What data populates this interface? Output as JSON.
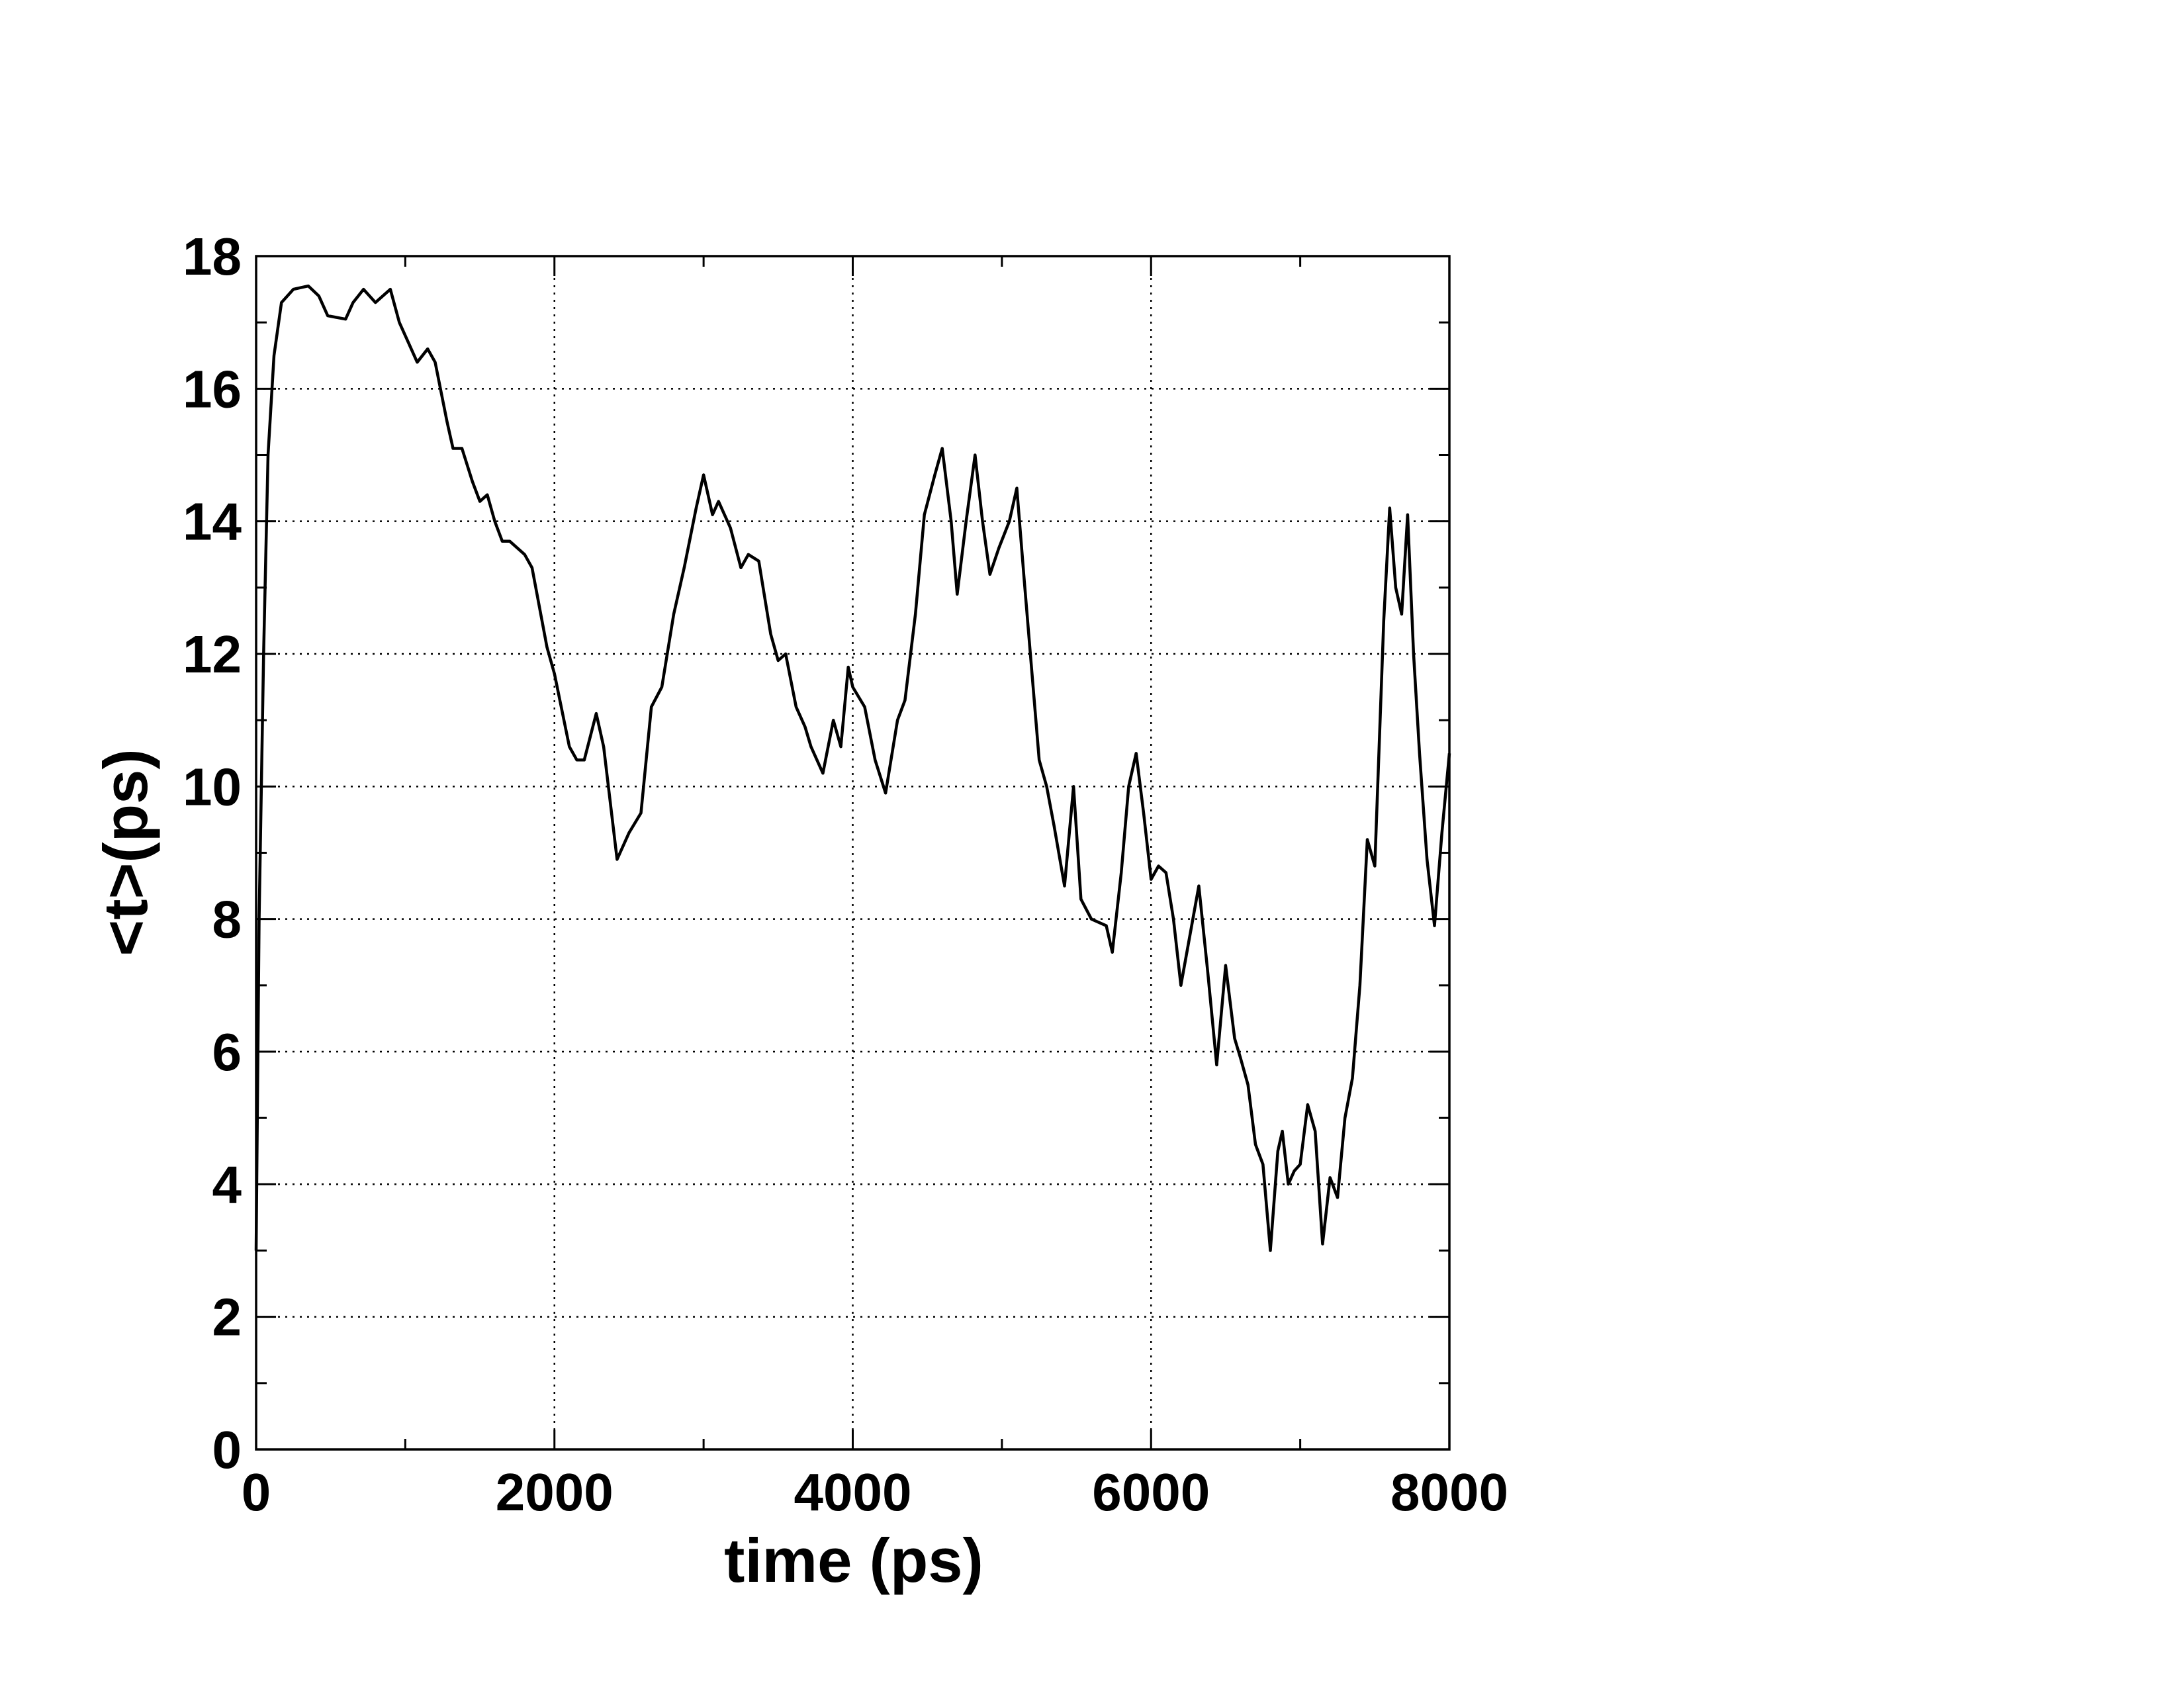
{
  "chart_data": {
    "type": "line",
    "xlabel": "time (ps)",
    "ylabel": "<t>(ps)",
    "x": [
      0,
      20,
      50,
      80,
      120,
      170,
      250,
      350,
      420,
      480,
      600,
      650,
      720,
      800,
      900,
      960,
      1020,
      1080,
      1150,
      1200,
      1280,
      1320,
      1380,
      1450,
      1500,
      1550,
      1600,
      1650,
      1700,
      1800,
      1850,
      1950,
      2000,
      2100,
      2150,
      2200,
      2280,
      2330,
      2420,
      2500,
      2580,
      2650,
      2720,
      2800,
      2870,
      2950,
      3000,
      3060,
      3100,
      3180,
      3250,
      3300,
      3370,
      3450,
      3500,
      3550,
      3620,
      3680,
      3720,
      3800,
      3870,
      3920,
      3970,
      4000,
      4080,
      4150,
      4220,
      4300,
      4350,
      4420,
      4480,
      4550,
      4600,
      4660,
      4700,
      4760,
      4820,
      4870,
      4920,
      4980,
      5050,
      5100,
      5150,
      5250,
      5300,
      5350,
      5420,
      5480,
      5530,
      5600,
      5700,
      5740,
      5800,
      5850,
      5900,
      5950,
      6000,
      6050,
      6100,
      6150,
      6200,
      6280,
      6320,
      6380,
      6440,
      6500,
      6560,
      6600,
      6650,
      6700,
      6750,
      6800,
      6850,
      6880,
      6920,
      6960,
      7000,
      7050,
      7100,
      7150,
      7200,
      7250,
      7300,
      7350,
      7400,
      7450,
      7500,
      7560,
      7600,
      7640,
      7680,
      7720,
      7760,
      7800,
      7850,
      7900,
      7950,
      8000
    ],
    "values": [
      3,
      8,
      12,
      15,
      16.5,
      17.3,
      17.5,
      17.55,
      17.4,
      17.1,
      17.05,
      17.3,
      17.5,
      17.3,
      17.5,
      17.0,
      16.7,
      16.4,
      16.6,
      16.4,
      15.5,
      15.1,
      15.1,
      14.6,
      14.3,
      14.4,
      14.0,
      13.7,
      13.7,
      13.5,
      13.3,
      12.1,
      11.7,
      10.6,
      10.4,
      10.4,
      11.1,
      10.6,
      8.9,
      9.3,
      9.6,
      11.2,
      11.5,
      12.6,
      13.3,
      14.2,
      14.7,
      14.1,
      14.3,
      13.9,
      13.3,
      13.5,
      13.4,
      12.3,
      11.9,
      12.0,
      11.2,
      10.9,
      10.6,
      10.2,
      11.0,
      10.6,
      11.8,
      11.5,
      11.2,
      10.4,
      9.9,
      11.0,
      11.3,
      12.6,
      14.1,
      14.7,
      15.1,
      14.0,
      12.9,
      14.0,
      15.0,
      14.0,
      13.2,
      13.6,
      14.0,
      14.5,
      13.1,
      10.4,
      10.0,
      9.4,
      8.5,
      10.0,
      8.3,
      8.0,
      7.9,
      7.5,
      8.7,
      10.0,
      10.5,
      9.6,
      8.6,
      8.8,
      8.7,
      8.0,
      7.0,
      8.0,
      8.5,
      7.2,
      5.8,
      7.3,
      6.2,
      5.9,
      5.5,
      4.6,
      4.3,
      3.0,
      4.5,
      4.8,
      4.0,
      4.2,
      4.3,
      5.2,
      4.8,
      3.1,
      4.1,
      3.8,
      5.0,
      5.6,
      7.0,
      9.2,
      8.8,
      12.5,
      14.2,
      13.0,
      12.6,
      14.1,
      12.0,
      10.5,
      8.9,
      7.9,
      9.3,
      10.5
    ],
    "color": "#000000",
    "xlim": [
      0,
      8000
    ],
    "xticks": [
      0,
      2000,
      4000,
      6000,
      8000
    ],
    "ylim": [
      0,
      18
    ],
    "yticks": [
      0,
      2,
      4,
      6,
      8,
      10,
      12,
      14,
      16,
      18
    ],
    "grid": true
  }
}
